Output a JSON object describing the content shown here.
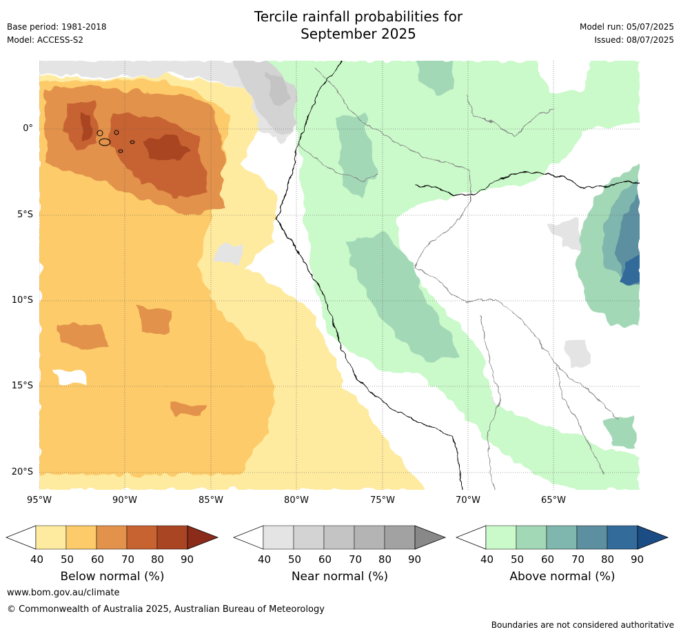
{
  "header": {
    "title_line1": "Tercile rainfall probabilities for",
    "title_line2": "September 2025",
    "base_period": "Base period: 1981-2018",
    "model": "Model: ACCESS-S2",
    "model_run": "Model run: 05/07/2025",
    "issued": "Issued: 08/07/2025"
  },
  "map": {
    "lat_labels": [
      "0°",
      "5°S",
      "10°S",
      "15°S",
      "20°S"
    ],
    "lon_labels": [
      "95°W",
      "90°W",
      "85°W",
      "80°W",
      "75°W",
      "70°W",
      "65°W"
    ],
    "lat_values": [
      0,
      -5,
      -10,
      -15,
      -20
    ],
    "lon_values": [
      -95,
      -90,
      -85,
      -80,
      -75,
      -70,
      -65
    ],
    "extent": {
      "lon_min": -95,
      "lon_max": -60,
      "lat_min": -21,
      "lat_max": 4
    }
  },
  "legend": {
    "ticks": [
      "40",
      "50",
      "60",
      "70",
      "80",
      "90"
    ],
    "below": {
      "title": "Below normal (%)",
      "colors": [
        "#ffffff",
        "#feeba0",
        "#fdcb6a",
        "#e2924b",
        "#c76331",
        "#aa4524",
        "#8b2b19"
      ]
    },
    "near": {
      "title": "Near normal (%)",
      "colors": [
        "#ffffff",
        "#e4e4e4",
        "#d3d3d3",
        "#c4c4c4",
        "#b4b4b4",
        "#a2a2a2",
        "#888888"
      ]
    },
    "above": {
      "title": "Above normal (%)",
      "colors": [
        "#ffffff",
        "#caf9ca",
        "#a3d8b6",
        "#7fb6ad",
        "#5c8fa0",
        "#336b9a",
        "#1b4d84"
      ]
    }
  },
  "footer": {
    "website": "www.bom.gov.au/climate",
    "copyright": "© Commonwealth of Australia 2025, Australian Bureau of Meteorology",
    "disclaimer": "Boundaries are not considered authoritative"
  }
}
